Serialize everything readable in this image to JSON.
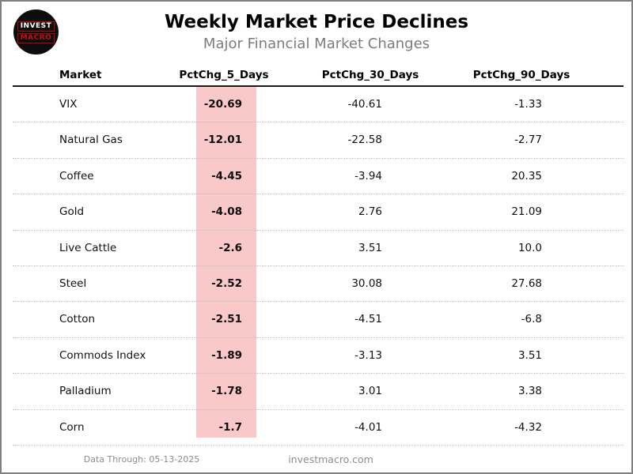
{
  "logo": {
    "line1": "INVEST",
    "line2": "MACRO"
  },
  "header": {
    "title": "Weekly Market Price Declines",
    "subtitle": "Major Financial Market Changes"
  },
  "chart_data": {
    "type": "table",
    "title": "Weekly Market Price Declines",
    "subtitle": "Major Financial Market Changes",
    "columns": [
      "Market",
      "PctChg_5_Days",
      "PctChg_30_Days",
      "PctChg_90_Days"
    ],
    "highlighted_column": "PctChg_5_Days",
    "highlight_color": "#f9c8c8",
    "rows": [
      {
        "market": "VIX",
        "chg5": "-20.69",
        "chg30": "-40.61",
        "chg90": "-1.33"
      },
      {
        "market": "Natural Gas",
        "chg5": "-12.01",
        "chg30": "-22.58",
        "chg90": "-2.77"
      },
      {
        "market": "Coffee",
        "chg5": "-4.45",
        "chg30": "-3.94",
        "chg90": "20.35"
      },
      {
        "market": "Gold",
        "chg5": "-4.08",
        "chg30": "2.76",
        "chg90": "21.09"
      },
      {
        "market": "Live Cattle",
        "chg5": "-2.6",
        "chg30": "3.51",
        "chg90": "10.0"
      },
      {
        "market": "Steel",
        "chg5": "-2.52",
        "chg30": "30.08",
        "chg90": "27.68"
      },
      {
        "market": "Cotton",
        "chg5": "-2.51",
        "chg30": "-4.51",
        "chg90": "-6.8"
      },
      {
        "market": "Commods Index",
        "chg5": "-1.89",
        "chg30": "-3.13",
        "chg90": "3.51"
      },
      {
        "market": "Palladium",
        "chg5": "-1.78",
        "chg30": "3.01",
        "chg90": "3.38"
      },
      {
        "market": "Corn",
        "chg5": "-1.7",
        "chg30": "-4.01",
        "chg90": "-4.32"
      }
    ]
  },
  "footer": {
    "data_through": "Data Through: 05-13-2025",
    "website": "investmacro.com"
  },
  "colors": {
    "frame_border": "#7f7f7f",
    "highlight": "#f9c8c8",
    "title": "#000000",
    "subtitle": "#7c7c7c",
    "footer_text": "#8c8c8c",
    "logo_background": "#0d0d0d",
    "logo_red": "#c41212"
  }
}
